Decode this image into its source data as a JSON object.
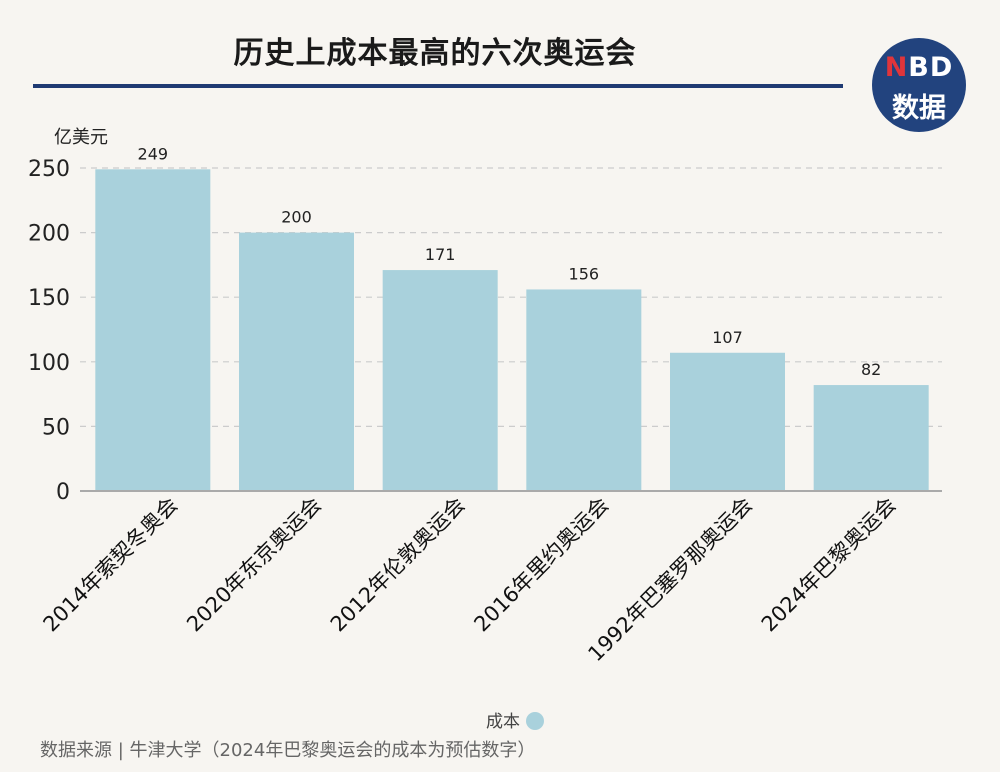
{
  "header": {
    "title": "历史上成本最高的六次奥运会",
    "logo_line1_red": "N",
    "logo_line1_rest": "BD",
    "logo_line2": "数据"
  },
  "chart_data": {
    "type": "bar",
    "title": "历史上成本最高的六次奥运会",
    "ylabel": "亿美元",
    "xlabel": "",
    "ylim": [
      0,
      250
    ],
    "yticks": [
      0,
      50,
      100,
      150,
      200,
      250
    ],
    "grid": true,
    "legend_position": "bottom",
    "categories": [
      "2014年索契冬奥会",
      "2020年东京奥运会",
      "2012年伦敦奥运会",
      "2016年里约奥运会",
      "1992年巴塞罗那奥运会",
      "2024年巴黎奥运会"
    ],
    "series": [
      {
        "name": "成本",
        "values": [
          249,
          200,
          171,
          156,
          107,
          82
        ],
        "color": "#a9d1dc"
      }
    ]
  },
  "footer": {
    "source": "数据来源 | 牛津大学（2024年巴黎奥运会的成本为预估数字）"
  }
}
